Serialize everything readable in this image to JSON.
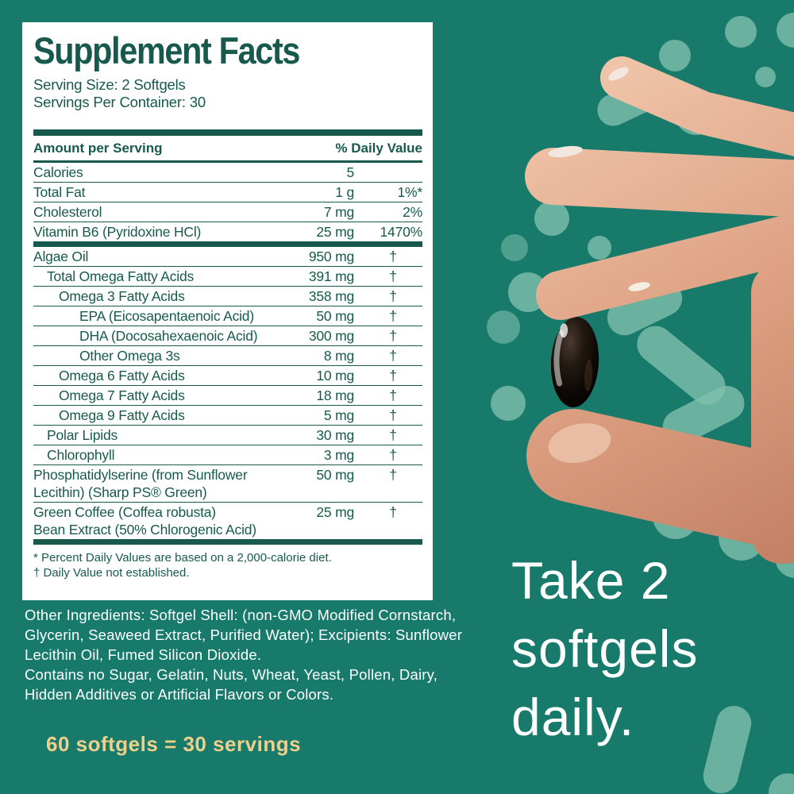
{
  "colors": {
    "background": "#177a6b",
    "panel": "#ffffff",
    "ink": "#175a4d",
    "shape": "#7fbfad",
    "accent_gold": "#eed08d",
    "text_light": "#ffffff",
    "softgel": "#0d0805"
  },
  "panel": {
    "title": "Supplement Facts",
    "serving_size": "Serving Size: 2 Softgels",
    "servings_per_container": "Servings Per Container: 30",
    "columns": {
      "amount": "Amount per Serving",
      "daily_value": "% Daily Value"
    },
    "rows": [
      {
        "name": "Calories",
        "amount": "5",
        "dv": "",
        "indent": 0,
        "section": "top"
      },
      {
        "name": "Total Fat",
        "amount": "1 g",
        "dv": "1%*",
        "indent": 0,
        "section": "top"
      },
      {
        "name": "Cholesterol",
        "amount": "7 mg",
        "dv": "2%",
        "indent": 0,
        "section": "top"
      },
      {
        "name": "Vitamin B6 (Pyridoxine HCl)",
        "amount": "25 mg",
        "dv": "1470%",
        "indent": 0,
        "section": "top"
      },
      {
        "name": "Algae Oil",
        "amount": "950 mg",
        "dv": "†",
        "indent": 0,
        "section": "main"
      },
      {
        "name": "Total Omega Fatty Acids",
        "amount": "391 mg",
        "dv": "†",
        "indent": 1,
        "section": "main"
      },
      {
        "name": "Omega 3 Fatty Acids",
        "amount": "358 mg",
        "dv": "†",
        "indent": 2,
        "section": "main"
      },
      {
        "name": "EPA (Eicosapentaenoic Acid)",
        "amount": "50 mg",
        "dv": "†",
        "indent": 3,
        "section": "main"
      },
      {
        "name": "DHA (Docosahexaenoic Acid)",
        "amount": "300 mg",
        "dv": "†",
        "indent": 3,
        "section": "main"
      },
      {
        "name": "Other Omega 3s",
        "amount": "8 mg",
        "dv": "†",
        "indent": 3,
        "section": "main"
      },
      {
        "name": "Omega 6 Fatty Acids",
        "amount": "10 mg",
        "dv": "†",
        "indent": 2,
        "section": "main"
      },
      {
        "name": "Omega 7 Fatty Acids",
        "amount": "18 mg",
        "dv": "†",
        "indent": 2,
        "section": "main"
      },
      {
        "name": "Omega 9 Fatty Acids",
        "amount": "5 mg",
        "dv": "†",
        "indent": 2,
        "section": "main"
      },
      {
        "name": "Polar Lipids",
        "amount": "30 mg",
        "dv": "†",
        "indent": 1,
        "section": "main"
      },
      {
        "name": "Chlorophyll",
        "amount": "3 mg",
        "dv": "†",
        "indent": 1,
        "section": "main"
      },
      {
        "name": "Phosphatidylserine (from Sunflower\nLecithin) (Sharp PS® Green)",
        "amount": "50 mg",
        "dv": "†",
        "indent": 0,
        "section": "main"
      },
      {
        "name": "Green Coffee (Coffea robusta)\nBean Extract (50% Chlorogenic Acid)",
        "amount": "25 mg",
        "dv": "†",
        "indent": 0,
        "section": "main"
      }
    ],
    "footnotes": [
      "* Percent Daily Values are based on a 2,000-calorie diet.",
      "† Daily Value not established."
    ]
  },
  "other_ingredients": "Other Ingredients: Softgel Shell: (non-GMO Modified Cornstarch, Glycerin, Seaweed Extract, Purified Water); Excipients: Sunflower Lecithin Oil, Fumed Silicon Dioxide.",
  "contains_statement": "Contains no Sugar, Gelatin, Nuts, Wheat, Yeast, Pollen, Dairy, Hidden Additives or Artificial Flavors or Colors.",
  "servings_equation": "60 softgels = 30 servings",
  "tagline": {
    "lines": [
      "Take 2",
      "softgels",
      "daily."
    ]
  }
}
